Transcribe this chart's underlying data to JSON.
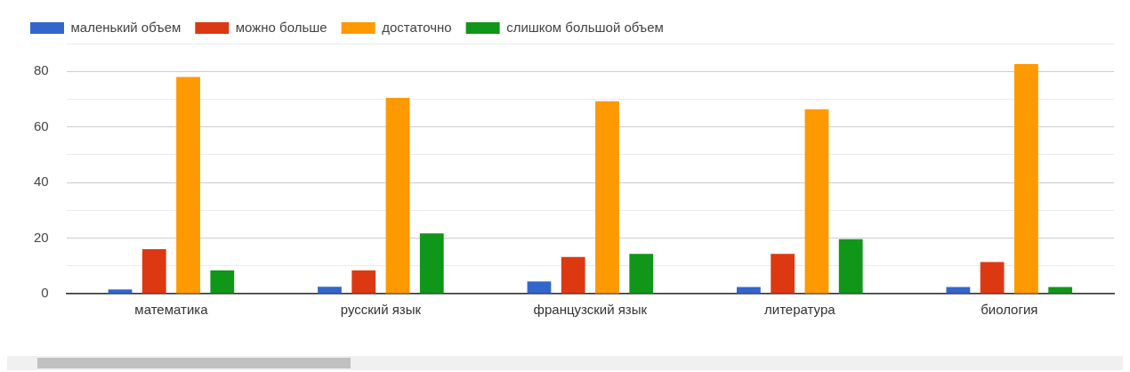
{
  "chart_data": {
    "type": "bar",
    "categories": [
      "математика",
      "русский язык",
      "французский язык",
      "литература",
      "биология"
    ],
    "series": [
      {
        "name": "маленький объем",
        "color": "#3366cc",
        "values": [
          1.5,
          2.5,
          4.4,
          2.4,
          2.4
        ]
      },
      {
        "name": "можно больше",
        "color": "#dc3912",
        "values": [
          16,
          8.4,
          13.2,
          14.3,
          11.4
        ]
      },
      {
        "name": "достаточно",
        "color": "#ff9900",
        "values": [
          78,
          70.5,
          69.3,
          66.4,
          82.6
        ]
      },
      {
        "name": "слишком большой объем",
        "color": "#109618",
        "values": [
          8.4,
          21.7,
          14.3,
          19.6,
          2.4
        ]
      }
    ],
    "ylim": [
      0,
      90
    ],
    "yticks": [
      0,
      {
        "value": 10,
        "label": null
      },
      20,
      {
        "value": 30,
        "label": null
      },
      40,
      {
        "value": 50,
        "label": null
      },
      60,
      {
        "value": 70,
        "label": null
      },
      80,
      {
        "value": 90,
        "label": null
      }
    ],
    "grid": "y",
    "legend": "top left"
  }
}
